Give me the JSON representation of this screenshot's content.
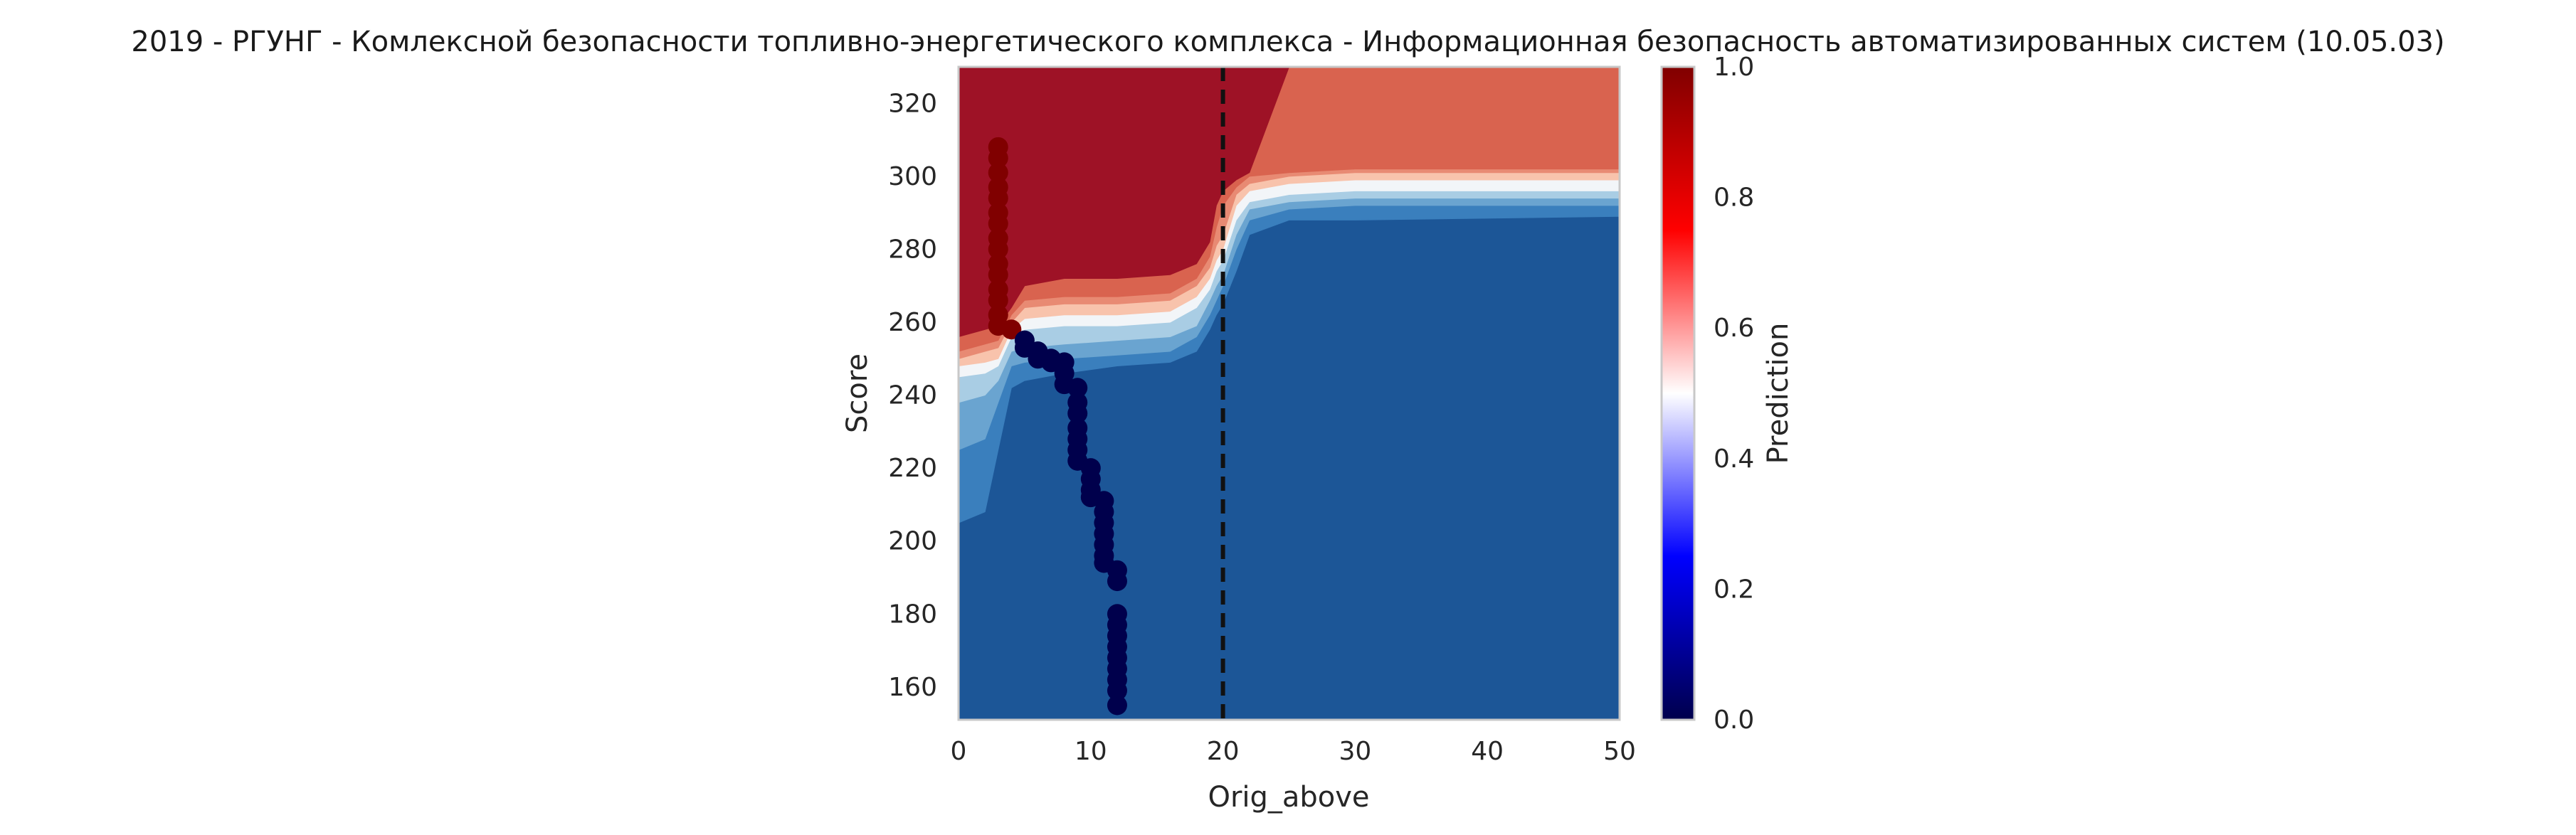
{
  "chart_data": {
    "type": "contour",
    "title": "2019 - РГУНГ - Комлексной безопасности топливно-энергетического комплекса - Информационная безопасность автоматизированных систем (10.05.03)",
    "xlabel": "Orig_above",
    "ylabel": "Score",
    "xlim": [
      0,
      50
    ],
    "ylim": [
      151,
      330
    ],
    "x_ticks": [
      "0",
      "10",
      "20",
      "30",
      "40",
      "50"
    ],
    "y_ticks": [
      "160",
      "180",
      "200",
      "220",
      "240",
      "260",
      "280",
      "300",
      "320"
    ],
    "grid": false,
    "vline": {
      "x": 20,
      "style": "dashed",
      "color": "#111111"
    },
    "colorbar": {
      "label": "Prediction",
      "range": [
        0,
        1
      ],
      "ticks": [
        "0.0",
        "0.2",
        "0.4",
        "0.6",
        "0.8",
        "1.0"
      ],
      "colormap": "seismic"
    },
    "contour_levels": [
      {
        "level": 0.0,
        "color": "#1c5697"
      },
      {
        "level": 0.15,
        "color": "#3a7fbd"
      },
      {
        "level": 0.3,
        "color": "#6aa4d0"
      },
      {
        "level": 0.4,
        "color": "#a9cde4"
      },
      {
        "level": 0.5,
        "color": "#f2f5f8"
      },
      {
        "level": 0.6,
        "color": "#f8c3ac"
      },
      {
        "level": 0.7,
        "color": "#e88a73"
      },
      {
        "level": 0.8,
        "color": "#d9634f"
      },
      {
        "level": 0.9,
        "color": "#9e1226"
      }
    ],
    "boundaries": {
      "x": [
        0,
        2,
        3,
        4,
        5,
        8,
        12,
        16,
        18,
        19,
        19.5,
        20,
        21,
        22,
        25,
        30,
        50
      ],
      "b1": [
        205,
        208,
        225,
        242,
        244,
        246,
        248,
        249,
        252,
        258,
        262,
        265,
        274,
        284,
        288,
        288,
        289
      ],
      "b2": [
        225,
        228,
        238,
        248,
        249,
        250,
        251,
        252,
        256,
        262,
        266,
        270,
        280,
        288,
        291,
        292,
        292
      ],
      "b3": [
        238,
        240,
        244,
        252,
        253,
        254,
        255,
        256,
        259,
        266,
        270,
        273,
        284,
        291,
        293,
        294,
        294
      ],
      "b4": [
        245,
        246,
        248,
        256,
        258,
        259,
        259,
        260,
        264,
        269,
        274,
        277,
        288,
        293,
        295,
        296,
        296
      ],
      "b5": [
        248,
        249,
        250,
        258,
        261,
        262,
        262,
        263,
        267,
        272,
        277,
        280,
        292,
        296,
        298,
        299,
        299
      ],
      "b6": [
        250,
        252,
        253,
        260,
        264,
        265,
        265,
        266,
        270,
        275,
        281,
        284,
        295,
        298,
        300,
        301,
        301
      ],
      "b7": [
        252,
        254,
        255,
        262,
        266,
        267,
        267,
        268,
        272,
        278,
        286,
        292,
        297,
        300,
        301,
        302,
        302
      ],
      "b8": [
        256,
        258,
        259,
        264,
        270,
        272,
        272,
        273,
        276,
        282,
        292,
        296,
        299,
        301,
        330,
        330,
        330
      ]
    },
    "points": [
      {
        "x": 3,
        "y": 308,
        "pred": 1
      },
      {
        "x": 3,
        "y": 305,
        "pred": 1
      },
      {
        "x": 3,
        "y": 301,
        "pred": 1
      },
      {
        "x": 3,
        "y": 297,
        "pred": 1
      },
      {
        "x": 3,
        "y": 294,
        "pred": 1
      },
      {
        "x": 3,
        "y": 290,
        "pred": 1
      },
      {
        "x": 3,
        "y": 287,
        "pred": 1
      },
      {
        "x": 3,
        "y": 283,
        "pred": 1
      },
      {
        "x": 3,
        "y": 280,
        "pred": 1
      },
      {
        "x": 3,
        "y": 276,
        "pred": 1
      },
      {
        "x": 3,
        "y": 273,
        "pred": 1
      },
      {
        "x": 3,
        "y": 269,
        "pred": 1
      },
      {
        "x": 3,
        "y": 266,
        "pred": 1
      },
      {
        "x": 3,
        "y": 262,
        "pred": 1
      },
      {
        "x": 3,
        "y": 259,
        "pred": 1
      },
      {
        "x": 4,
        "y": 258,
        "pred": 1
      },
      {
        "x": 5,
        "y": 255,
        "pred": 0
      },
      {
        "x": 5,
        "y": 253,
        "pred": 0
      },
      {
        "x": 6,
        "y": 252,
        "pred": 0
      },
      {
        "x": 6,
        "y": 250,
        "pred": 0
      },
      {
        "x": 7,
        "y": 250,
        "pred": 0
      },
      {
        "x": 7,
        "y": 249,
        "pred": 0
      },
      {
        "x": 8,
        "y": 249,
        "pred": 0
      },
      {
        "x": 8,
        "y": 246,
        "pred": 0
      },
      {
        "x": 8,
        "y": 243,
        "pred": 0
      },
      {
        "x": 9,
        "y": 242,
        "pred": 0
      },
      {
        "x": 9,
        "y": 238,
        "pred": 0
      },
      {
        "x": 9,
        "y": 235,
        "pred": 0
      },
      {
        "x": 9,
        "y": 231,
        "pred": 0
      },
      {
        "x": 9,
        "y": 228,
        "pred": 0
      },
      {
        "x": 9,
        "y": 225,
        "pred": 0
      },
      {
        "x": 9,
        "y": 222,
        "pred": 0
      },
      {
        "x": 10,
        "y": 220,
        "pred": 0
      },
      {
        "x": 10,
        "y": 217,
        "pred": 0
      },
      {
        "x": 10,
        "y": 214,
        "pred": 0
      },
      {
        "x": 10,
        "y": 212,
        "pred": 0
      },
      {
        "x": 11,
        "y": 211,
        "pred": 0
      },
      {
        "x": 11,
        "y": 208,
        "pred": 0
      },
      {
        "x": 11,
        "y": 205,
        "pred": 0
      },
      {
        "x": 11,
        "y": 202,
        "pred": 0
      },
      {
        "x": 11,
        "y": 199,
        "pred": 0
      },
      {
        "x": 11,
        "y": 196,
        "pred": 0
      },
      {
        "x": 11,
        "y": 194,
        "pred": 0
      },
      {
        "x": 12,
        "y": 192,
        "pred": 0
      },
      {
        "x": 12,
        "y": 189,
        "pred": 0
      },
      {
        "x": 12,
        "y": 180,
        "pred": 0
      },
      {
        "x": 12,
        "y": 177,
        "pred": 0
      },
      {
        "x": 12,
        "y": 174,
        "pred": 0
      },
      {
        "x": 12,
        "y": 171,
        "pred": 0
      },
      {
        "x": 12,
        "y": 168,
        "pred": 0
      },
      {
        "x": 12,
        "y": 165,
        "pred": 0
      },
      {
        "x": 12,
        "y": 162,
        "pred": 0
      },
      {
        "x": 12,
        "y": 159,
        "pred": 0
      },
      {
        "x": 12,
        "y": 155,
        "pred": 0
      }
    ],
    "point_colors": {
      "high": "#800000",
      "low": "#00004c"
    }
  }
}
